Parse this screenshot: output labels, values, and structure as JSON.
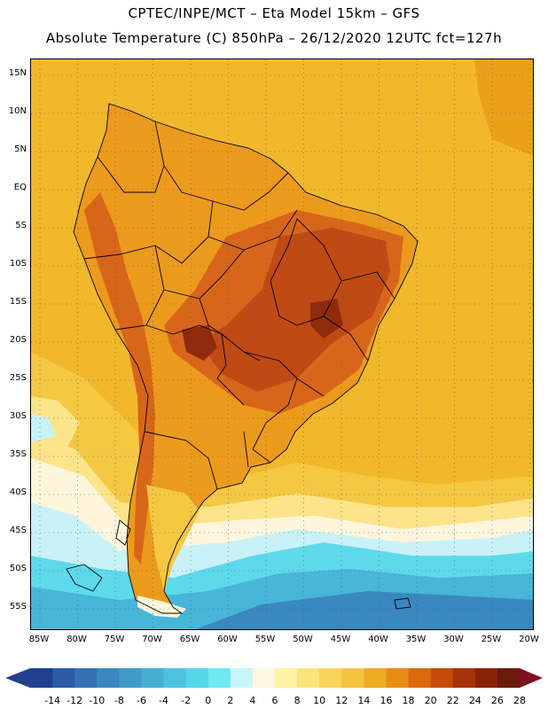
{
  "title_line1": "CPTEC/INPE/MCT –   Eta Model 15km – GFS",
  "title_line2": "Absolute Temperature (C) 850hPa – 26/12/2020 12UTC fct=127h",
  "latitude_labels": [
    "15N",
    "10N",
    "5N",
    "EQ",
    "5S",
    "10S",
    "15S",
    "20S",
    "25S",
    "30S",
    "35S",
    "40S",
    "45S",
    "50S",
    "55S"
  ],
  "longitude_labels": [
    "85W",
    "80W",
    "75W",
    "70W",
    "65W",
    "60W",
    "55W",
    "50W",
    "45W",
    "40W",
    "35W",
    "30W",
    "25W",
    "20W"
  ],
  "colorbar": {
    "labels": [
      "-14",
      "-12",
      "-10",
      "-8",
      "-6",
      "-4",
      "-2",
      "0",
      "2",
      "4",
      "6",
      "8",
      "10",
      "12",
      "14",
      "16",
      "18",
      "20",
      "22",
      "24",
      "26",
      "28"
    ],
    "colors": [
      "#1f3f8f",
      "#2c5aa5",
      "#3472b3",
      "#3b88c0",
      "#3f9cc8",
      "#45b0d4",
      "#4cc3de",
      "#55d6e8",
      "#6fe8f2",
      "#c8f5fb",
      "#fdf7e0",
      "#fdf3a0",
      "#fbe47a",
      "#f8d45a",
      "#f4c23e",
      "#eeac22",
      "#e88c14",
      "#dd6a0c",
      "#c74a0a",
      "#a83208",
      "#8a2206",
      "#6b1a0a"
    ],
    "low_arrow_color": "#243f8c",
    "high_arrow_color": "#7d0f22"
  },
  "field_colors": {
    "ocean_warm": "#f2b82c",
    "ocean_mid": "#f5c843",
    "pale": "#fbe48a",
    "cream": "#fdf6dd",
    "light_cyan": "#c8f2f8",
    "cyan": "#5ed9ec",
    "mid_blue": "#47b6d8",
    "deep_blue": "#3a88c0",
    "land_warm": "#ec9a1c",
    "land_hot": "#d8661a",
    "land_hotter": "#bf4a14",
    "land_hottest": "#8f2a0c",
    "orange_ne": "#eba01c"
  }
}
